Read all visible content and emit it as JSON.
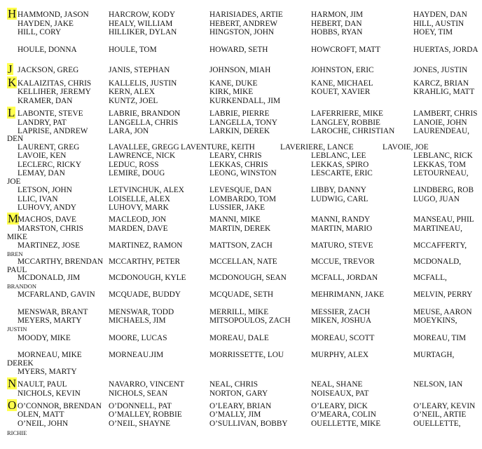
{
  "highlight_color": "#ffff4d",
  "sections": [
    {
      "letter": "H",
      "lines": [
        {
          "names": [
            "HAMMOND, JASON",
            "HARCROW, KODY",
            "HARISIADES, ARTIE",
            "HARMON, JIM",
            "HAYDEN, DAN"
          ]
        },
        {
          "names": [
            "HAYDEN, JAKE",
            "HEALY, WILLIAM",
            "HEBERT, ANDREW",
            "HEBERT, DAN",
            "HILL, AUSTIN"
          ]
        },
        {
          "names": [
            "HILL, CORY",
            "HILLIKER, DYLAN",
            "HINGSTON, JOHN",
            "HOBBS, RYAN",
            "HOEY, TIM"
          ]
        },
        {
          "names": [
            "HOULE, DONNA",
            "HOULE, TOM",
            "HOWARD, SETH",
            "HOWCROFT, MATT",
            "HUERTAS, JORDA"
          ]
        }
      ]
    },
    {
      "letter": "J",
      "lines": [
        {
          "names": [
            "JACKSON, GREG",
            "JANIS, STEPHAN",
            "JOHNSON, MIAH",
            "JOHNSTON, ERIC",
            "JONES, JUSTIN"
          ]
        }
      ]
    },
    {
      "letter": "K",
      "lines": [
        {
          "names": [
            "KALAIZITAS, CHRIS",
            "KALLELIS, JUSTIN",
            "KANE, DUKE",
            "KANE, MICHAEL",
            "KARCZ, BRIAN"
          ]
        },
        {
          "names": [
            "KELLIHER, JEREMY",
            "KERN, ALEX",
            "KIRK, MIKE",
            "KOUET, XAVIER",
            "KRAHLIG, MATT"
          ]
        },
        {
          "names": [
            "KRAMER, DAN",
            "KUNTZ, JOEL",
            "KURKENDALL, JIM"
          ]
        }
      ]
    },
    {
      "letter": "L",
      "lines": [
        {
          "names": [
            "LABONTE, STEVE",
            "LABRIE, BRANDON",
            "LABRIE, PIERRE",
            "LAFERRIERE, MIKE",
            "LAMBERT, CHRIS"
          ]
        },
        {
          "names": [
            "LANDRY, PAT",
            "LANGELLA, CHRIS",
            "LANGELLA, TONY",
            "LANGLEY, ROBBIE",
            "LANOIE, JOHN"
          ]
        },
        {
          "names": [
            "LAPRISE, ANDREW",
            "LARA, JON",
            "LARKIN, DEREK",
            "LAROCHE, CHRISTIAN",
            "LAURENDEAU,"
          ],
          "overflow": "DEN"
        },
        {
          "names": [
            "LAURENT, GREG",
            "LAVALLEE, GREGG",
            "LAVENTURE, KEITH",
            "LAVERIERE, LANCE",
            "LAVOIE, JOE"
          ]
        },
        {
          "names": [
            "LAVOIE, KEN",
            "LAWRENCE, NICK",
            "LEARY, CHRIS",
            "LEBLANC, LEE",
            "LEBLANC, RICK"
          ]
        },
        {
          "names": [
            "LECLERC, RICKY",
            "LEDUC, ROSS",
            "LEKKAS, CHRIS",
            "LEKKAS, SPIRO",
            "LEKKAS, TOM"
          ]
        },
        {
          "names": [
            "LEMAY, DAN",
            "LEMIRE, DOUG",
            "LEONG, WINSTON",
            "LESCARTE, ERIC",
            "LETOURNEAU,"
          ],
          "overflow": "JOE"
        },
        {
          "names": [
            "LETSON, JOHN",
            "LETVINCHUK, ALEX",
            "LEVESQUE, DAN",
            "LIBBY, DANNY",
            "LINDBERG, ROB"
          ]
        },
        {
          "names": [
            "LLIC, IVAN",
            "LOISELLE, ALEX",
            "LOMBARDO, TOM",
            "LUDWIG, CARL",
            "LUGO, JUAN"
          ]
        },
        {
          "names": [
            "LUHOVY, ANDY",
            "LUHOVY, MARK",
            "LUSSIER, JAKE"
          ]
        }
      ]
    },
    {
      "letter": "M",
      "lines": [
        {
          "names": [
            "MACHOS, DAVE",
            "MACLEOD, JON",
            "MANNI, MIKE",
            "MANNI, RANDY",
            "MANSEAU, PHIL"
          ]
        },
        {
          "names": [
            "MARSTON, CHRIS",
            "MARDEN, DAVE",
            "MARTIN, DEREK",
            "MARTIN, MARIO",
            "MARTINEAU,"
          ],
          "overflow": "MIKE"
        },
        {
          "names": [
            "MARTINEZ, JOSE",
            "MARTINEZ, RAMON",
            "MATTSON, ZACH",
            "MATURO, STEVE",
            "MCCAFFERTY,"
          ],
          "overflow": "BREN"
        },
        {
          "names": [
            "MCCARTHY, BRENDAN",
            "MCCARTHY, PETER",
            "MCCELLAN, NATE",
            "MCCUE, TREVOR",
            "MCDONALD,"
          ],
          "overflow": "PAUL"
        },
        {
          "names": [
            "MCDONALD, JIM",
            "MCDONOUGH, KYLE",
            "MCDONOUGH, SEAN",
            "MCFALL, JORDAN",
            "MCFALL,"
          ],
          "overflow": "BRANDON"
        },
        {
          "names": [
            "MCFARLAND, GAVIN",
            "MCQUADE, BUDDY",
            "MCQUADE, SETH",
            "MEHRIMANN, JAKE",
            "MELVIN, PERRY"
          ]
        },
        {
          "names": [
            "MENSWAR, BRANT",
            "MENSWAR, TODD",
            "MERRILL, MIKE",
            "MESSIER, ZACH",
            "MEUSE, AARON"
          ]
        },
        {
          "names": [
            "MEYERS, MARTY",
            "MICHAELS, JIM",
            "MITSOPOULOS, ZACH",
            "MIKEN, JOSHUA",
            "MOEYKINS,"
          ],
          "overflow": "JUSTIN"
        },
        {
          "names": [
            "MOODY, MIKE",
            "MOORE, LUCAS",
            "MOREAU, DALE",
            "MOREAU, SCOTT",
            "MOREAU, TIM"
          ]
        },
        {
          "names": [
            "MORNEAU, MIKE",
            "MORNEAU.JIM",
            "MORRISSETTE, LOU",
            "MURPHY, ALEX",
            "MURTAGH,"
          ],
          "overflow": "DEREK"
        },
        {
          "names": [
            "MYERS, MARTY"
          ]
        }
      ]
    },
    {
      "letter": "N",
      "lines": [
        {
          "names": [
            "NAULT, PAUL",
            "NAVARRO, VINCENT",
            "NEAL, CHRIS",
            "NEAL, SHANE",
            "NELSON, IAN"
          ]
        },
        {
          "names": [
            "NICHOLS, KEVIN",
            "NICHOLS, SEAN",
            "NORTON, GARY",
            "NOISEAUX, PAT"
          ]
        }
      ]
    },
    {
      "letter": "O",
      "lines": [
        {
          "names": [
            "O’CONNOR, BRENDAN",
            "O’DONNELL, PAT",
            "O’LEARY, BRIAN",
            "O’LEARY, DICK",
            "O’LEARY, KEVIN"
          ]
        },
        {
          "names": [
            "OLEN, MATT",
            "O’MALLEY, ROBBIE",
            "O’MALLY, JIM",
            "O’MEARA, COLIN",
            "O’NEIL, ARTIE"
          ]
        },
        {
          "names": [
            "O’NEIL, JOHN",
            "O’NEIL, SHAYNE",
            "O’SULLIVAN, BOBBY",
            "OUELLETTE, MIKE",
            "OUELLETTE,"
          ],
          "overflow": "RICHIE"
        }
      ]
    }
  ]
}
